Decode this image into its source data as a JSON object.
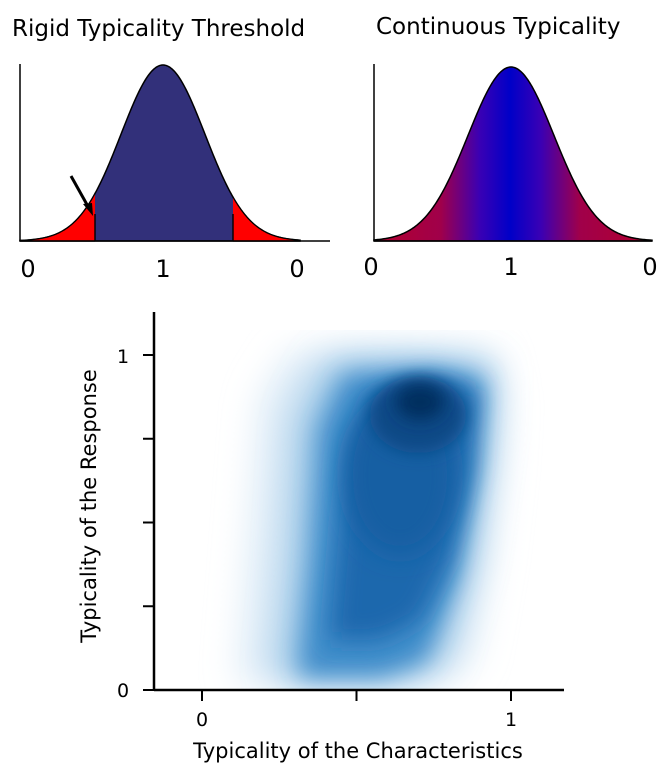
{
  "chart_data": [
    {
      "type": "area",
      "title": "Rigid Typicality Threshold",
      "x_tick_labels": [
        "0",
        "1",
        "0"
      ],
      "curve": "normal",
      "fill_color": "#32307a",
      "tail_color": "#ff0000",
      "threshold_marked_by": "arrow-icon"
    },
    {
      "type": "area",
      "title": "Continuous Typicality",
      "x_tick_labels": [
        "0",
        "1",
        "0"
      ],
      "curve": "normal",
      "gradient_center_color": "#0000c8",
      "gradient_edge_color": "#b4002e"
    },
    {
      "type": "heatmap",
      "xlabel": "Typicality of the Characteristics",
      "ylabel": "Typicality of the Response",
      "xlim": [
        0,
        1
      ],
      "ylim": [
        0,
        1
      ],
      "x_ticks": [
        0,
        0.5,
        1
      ],
      "x_tick_labels": [
        "0",
        "",
        "1"
      ],
      "y_ticks": [
        0,
        0.25,
        0.5,
        0.75,
        1
      ],
      "y_tick_labels": [
        "0",
        "",
        "",
        "",
        "1"
      ],
      "colormap": "blues",
      "density_peak": {
        "x": 0.68,
        "y": 0.86
      }
    }
  ]
}
